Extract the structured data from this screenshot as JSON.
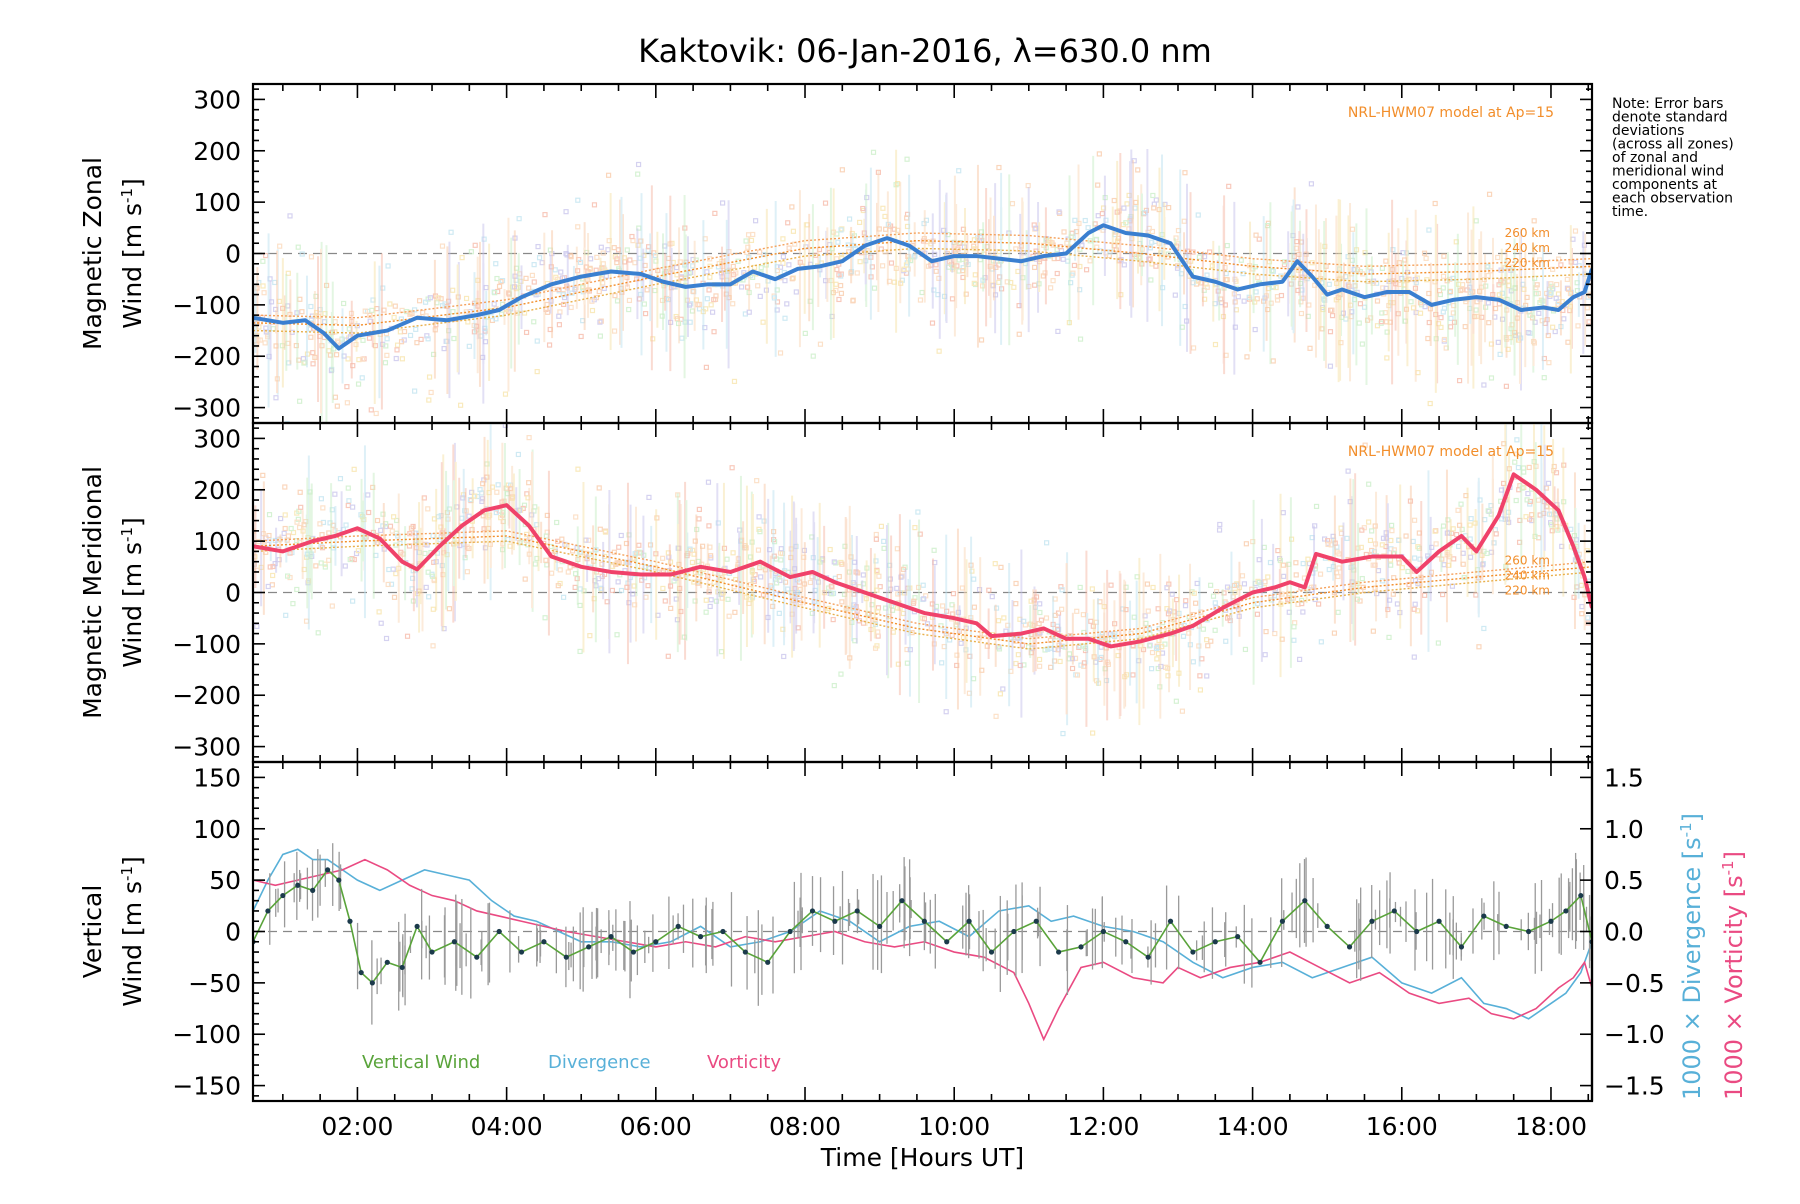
{
  "title": "Kaktovik: 06-Jan-2016, λ=630.0 nm",
  "note_lines": [
    "Note: Error bars",
    "denote standard",
    "deviations",
    "(across all zones)",
    "of zonal and",
    "meridional wind",
    "components at",
    "each observation",
    "time."
  ],
  "colors": {
    "zonal": "#3a7fd0",
    "meridional": "#f0426a",
    "vertical": "#59a33a",
    "divergence": "#58b0d8",
    "vorticity": "#ea4a82",
    "model": "#f28e2b",
    "zero": "#888888"
  },
  "chart_data": [
    {
      "type": "scatter",
      "name": "panel-zonal",
      "ylabel_line1": "Magnetic Zonal",
      "ylabel_line2": "Wind [m s",
      "ylabel_sup": "-1",
      "ylabel_end": "]",
      "xlim": [
        0.6,
        18.55
      ],
      "ylim": [
        -330,
        330
      ],
      "y_ticks": [
        "300",
        "200",
        "100",
        "0",
        "-100",
        "-200",
        "-300"
      ],
      "model_label": "NRL-HWM07 model at Ap=15",
      "altitude_labels": [
        "260 km",
        "240 km",
        "220 km"
      ],
      "series": [
        {
          "x": [
            0.6,
            1.0,
            1.3,
            1.55,
            1.75,
            2.0,
            2.4,
            2.8,
            3.2,
            3.6,
            3.9,
            4.2,
            4.6,
            5.0,
            5.4,
            5.8,
            6.1,
            6.4,
            6.7,
            7.0,
            7.3,
            7.6,
            7.9,
            8.2,
            8.5,
            8.8,
            9.1,
            9.4,
            9.7,
            10.0,
            10.3,
            10.6,
            10.9,
            11.2,
            11.5,
            11.8,
            12.0,
            12.3,
            12.6,
            12.9,
            13.2,
            13.5,
            13.8,
            14.1,
            14.4,
            14.6,
            14.8,
            15.0,
            15.2,
            15.5,
            15.8,
            16.1,
            16.4,
            16.7,
            17.0,
            17.3,
            17.6,
            17.9,
            18.1,
            18.3,
            18.45,
            18.55
          ],
          "values": [
            -125,
            -135,
            -130,
            -155,
            -185,
            -160,
            -150,
            -125,
            -130,
            -120,
            -110,
            -85,
            -60,
            -45,
            -35,
            -40,
            -55,
            -65,
            -60,
            -60,
            -35,
            -50,
            -30,
            -25,
            -15,
            15,
            30,
            15,
            -15,
            -5,
            -5,
            -10,
            -15,
            -5,
            0,
            40,
            55,
            40,
            35,
            20,
            -45,
            -55,
            -70,
            -60,
            -55,
            -15,
            -45,
            -80,
            -70,
            -85,
            -75,
            -75,
            -100,
            -90,
            -85,
            -90,
            -110,
            -105,
            -110,
            -85,
            -75,
            -30
          ]
        },
        {
          "name": "model-260",
          "x": [
            0.6,
            2.0,
            4.0,
            6.0,
            8.0,
            9.5,
            11.0,
            12.5,
            14.0,
            15.5,
            17.0,
            18.55
          ],
          "values": [
            -120,
            -125,
            -90,
            -30,
            25,
            40,
            35,
            15,
            -10,
            -25,
            -20,
            -10
          ]
        },
        {
          "name": "model-240",
          "x": [
            0.6,
            2.0,
            4.0,
            6.0,
            8.0,
            9.5,
            11.0,
            12.5,
            14.0,
            15.5,
            17.0,
            18.55
          ],
          "values": [
            -135,
            -140,
            -105,
            -45,
            10,
            25,
            20,
            0,
            -25,
            -40,
            -35,
            -25
          ]
        },
        {
          "name": "model-220",
          "x": [
            0.6,
            2.0,
            4.0,
            6.0,
            8.0,
            9.5,
            11.0,
            12.5,
            14.0,
            15.5,
            17.0,
            18.55
          ],
          "values": [
            -150,
            -155,
            -120,
            -60,
            -5,
            10,
            5,
            -15,
            -40,
            -55,
            -50,
            -40
          ]
        }
      ]
    },
    {
      "type": "scatter",
      "name": "panel-meridional",
      "ylabel_line1": "Magnetic Meridional",
      "ylabel_line2": "Wind [m s",
      "ylabel_sup": "-1",
      "ylabel_end": "]",
      "xlim": [
        0.6,
        18.55
      ],
      "ylim": [
        -330,
        330
      ],
      "y_ticks": [
        "300",
        "200",
        "100",
        "0",
        "-100",
        "-200",
        "-300"
      ],
      "model_label": "NRL-HWM07 model at Ap=15",
      "altitude_labels": [
        "260 km",
        "240 km",
        "220 km"
      ],
      "series": [
        {
          "x": [
            0.6,
            1.0,
            1.4,
            1.7,
            2.0,
            2.3,
            2.6,
            2.8,
            3.1,
            3.4,
            3.7,
            4.0,
            4.3,
            4.6,
            5.0,
            5.4,
            5.8,
            6.2,
            6.6,
            7.0,
            7.4,
            7.8,
            8.1,
            8.4,
            8.8,
            9.2,
            9.6,
            10.0,
            10.3,
            10.5,
            10.9,
            11.2,
            11.5,
            11.8,
            12.1,
            12.5,
            12.9,
            13.2,
            13.6,
            14.0,
            14.3,
            14.5,
            14.7,
            14.85,
            15.2,
            15.6,
            16.0,
            16.2,
            16.5,
            16.8,
            17.0,
            17.3,
            17.5,
            17.8,
            18.1,
            18.3,
            18.45,
            18.55
          ],
          "values": [
            90,
            80,
            100,
            110,
            125,
            105,
            60,
            45,
            90,
            130,
            160,
            170,
            130,
            70,
            50,
            40,
            35,
            35,
            50,
            40,
            60,
            30,
            40,
            20,
            0,
            -20,
            -40,
            -50,
            -60,
            -85,
            -80,
            -70,
            -90,
            -90,
            -105,
            -95,
            -80,
            -65,
            -30,
            0,
            10,
            20,
            10,
            75,
            60,
            70,
            70,
            40,
            80,
            110,
            80,
            150,
            230,
            200,
            160,
            90,
            30,
            -30
          ]
        },
        {
          "name": "model-260",
          "x": [
            0.6,
            2.0,
            4.0,
            6.0,
            8.0,
            9.5,
            11.0,
            12.5,
            14.0,
            15.5,
            17.0,
            18.55
          ],
          "values": [
            100,
            110,
            120,
            60,
            -10,
            -60,
            -90,
            -70,
            -10,
            20,
            40,
            60
          ]
        },
        {
          "name": "model-240",
          "x": [
            0.6,
            2.0,
            4.0,
            6.0,
            8.0,
            9.5,
            11.0,
            12.5,
            14.0,
            15.5,
            17.0,
            18.55
          ],
          "values": [
            90,
            100,
            110,
            50,
            -20,
            -70,
            -100,
            -80,
            -20,
            10,
            30,
            50
          ]
        },
        {
          "name": "model-220",
          "x": [
            0.6,
            2.0,
            4.0,
            6.0,
            8.0,
            9.5,
            11.0,
            12.5,
            14.0,
            15.5,
            17.0,
            18.55
          ],
          "values": [
            80,
            90,
            100,
            40,
            -30,
            -80,
            -110,
            -90,
            -30,
            0,
            20,
            40
          ]
        }
      ]
    },
    {
      "type": "line",
      "name": "panel-vertical",
      "ylabel_line1": "Vertical",
      "ylabel_line2": "Wind [m s",
      "ylabel_sup": "-1",
      "ylabel_end": "]",
      "right_label_div": "1000 × Divergence [s",
      "right_label_vor": "1000 × Vorticity [s",
      "right_label_sup": "-1",
      "right_label_end": "]",
      "xlim": [
        0.6,
        18.55
      ],
      "ylim": [
        -165,
        165
      ],
      "y_ticks": [
        "150",
        "100",
        "50",
        "0",
        "-50",
        "-100",
        "-150"
      ],
      "y2lim": [
        -1.65,
        1.65
      ],
      "y2_ticks": [
        "1.5",
        "1.0",
        "0.5",
        "0.0",
        "-0.5",
        "-1.0",
        "-1.5"
      ],
      "x_ticks": [
        "02:00",
        "04:00",
        "06:00",
        "08:00",
        "10:00",
        "12:00",
        "14:00",
        "16:00",
        "18:00"
      ],
      "xlabel": "Time [Hours UT]",
      "legend": [
        "Vertical Wind",
        "Divergence",
        "Vorticity"
      ],
      "series": [
        {
          "name": "Vertical Wind",
          "x": [
            0.6,
            0.8,
            1.0,
            1.2,
            1.4,
            1.6,
            1.75,
            1.9,
            2.05,
            2.2,
            2.4,
            2.6,
            2.8,
            3.0,
            3.3,
            3.6,
            3.9,
            4.2,
            4.5,
            4.8,
            5.1,
            5.4,
            5.7,
            6.0,
            6.3,
            6.6,
            6.9,
            7.2,
            7.5,
            7.8,
            8.1,
            8.4,
            8.7,
            9.0,
            9.3,
            9.6,
            9.9,
            10.2,
            10.5,
            10.8,
            11.1,
            11.4,
            11.7,
            12.0,
            12.3,
            12.6,
            12.9,
            13.2,
            13.5,
            13.8,
            14.1,
            14.4,
            14.7,
            15.0,
            15.3,
            15.6,
            15.9,
            16.2,
            16.5,
            16.8,
            17.1,
            17.4,
            17.7,
            18.0,
            18.2,
            18.4,
            18.55
          ],
          "values": [
            -10,
            20,
            35,
            45,
            40,
            60,
            50,
            10,
            -40,
            -50,
            -30,
            -35,
            5,
            -20,
            -10,
            -25,
            0,
            -20,
            -10,
            -25,
            -15,
            -5,
            -20,
            -10,
            5,
            -5,
            0,
            -20,
            -30,
            0,
            20,
            10,
            20,
            5,
            30,
            10,
            -10,
            10,
            -20,
            0,
            10,
            -20,
            -15,
            0,
            -10,
            -25,
            10,
            -20,
            -10,
            -5,
            -30,
            10,
            30,
            5,
            -15,
            10,
            20,
            0,
            10,
            -15,
            15,
            5,
            0,
            10,
            20,
            35,
            -10
          ]
        },
        {
          "name": "Divergence",
          "x": [
            0.6,
            0.8,
            1.0,
            1.2,
            1.4,
            1.6,
            1.8,
            2.0,
            2.3,
            2.6,
            2.9,
            3.2,
            3.5,
            3.8,
            4.1,
            4.4,
            4.7,
            5.0,
            5.4,
            5.8,
            6.2,
            6.6,
            7.0,
            7.4,
            7.8,
            8.2,
            8.6,
            9.0,
            9.4,
            9.8,
            10.2,
            10.6,
            11.0,
            11.3,
            11.6,
            12.0,
            12.4,
            12.8,
            13.2,
            13.6,
            14.0,
            14.4,
            14.8,
            15.2,
            15.6,
            16.0,
            16.4,
            16.8,
            17.1,
            17.4,
            17.7,
            18.0,
            18.2,
            18.4,
            18.55
          ],
          "values": [
            0.2,
            0.5,
            0.75,
            0.8,
            0.7,
            0.7,
            0.6,
            0.5,
            0.4,
            0.5,
            0.6,
            0.55,
            0.5,
            0.3,
            0.15,
            0.1,
            0.0,
            -0.1,
            -0.1,
            -0.15,
            -0.1,
            0.05,
            -0.15,
            -0.1,
            0.0,
            0.2,
            0.1,
            -0.1,
            0.05,
            0.1,
            -0.05,
            0.2,
            0.25,
            0.1,
            0.15,
            0.05,
            0.0,
            -0.1,
            -0.3,
            -0.45,
            -0.35,
            -0.3,
            -0.45,
            -0.35,
            -0.25,
            -0.5,
            -0.6,
            -0.45,
            -0.7,
            -0.75,
            -0.85,
            -0.7,
            -0.6,
            -0.4,
            -0.1
          ]
        },
        {
          "name": "Vorticity",
          "x": [
            0.6,
            0.9,
            1.2,
            1.5,
            1.8,
            2.1,
            2.4,
            2.7,
            3.0,
            3.3,
            3.6,
            3.9,
            4.2,
            4.5,
            4.8,
            5.2,
            5.6,
            6.0,
            6.4,
            6.8,
            7.2,
            7.6,
            8.0,
            8.4,
            8.8,
            9.2,
            9.6,
            10.0,
            10.4,
            10.8,
            11.0,
            11.2,
            11.4,
            11.7,
            12.0,
            12.4,
            12.8,
            13.0,
            13.3,
            13.7,
            14.1,
            14.5,
            14.9,
            15.3,
            15.7,
            16.1,
            16.5,
            16.9,
            17.2,
            17.5,
            17.8,
            18.1,
            18.3,
            18.45,
            18.55
          ],
          "values": [
            0.5,
            0.45,
            0.5,
            0.55,
            0.6,
            0.7,
            0.6,
            0.45,
            0.35,
            0.3,
            0.2,
            0.15,
            0.1,
            0.05,
            0.0,
            -0.05,
            -0.1,
            -0.15,
            -0.1,
            -0.15,
            -0.05,
            -0.1,
            -0.05,
            0.0,
            -0.1,
            -0.15,
            -0.1,
            -0.2,
            -0.25,
            -0.4,
            -0.7,
            -1.05,
            -0.75,
            -0.35,
            -0.3,
            -0.45,
            -0.5,
            -0.35,
            -0.45,
            -0.35,
            -0.3,
            -0.2,
            -0.35,
            -0.5,
            -0.4,
            -0.6,
            -0.7,
            -0.65,
            -0.8,
            -0.85,
            -0.75,
            -0.55,
            -0.45,
            -0.3,
            -0.55
          ]
        }
      ]
    }
  ]
}
